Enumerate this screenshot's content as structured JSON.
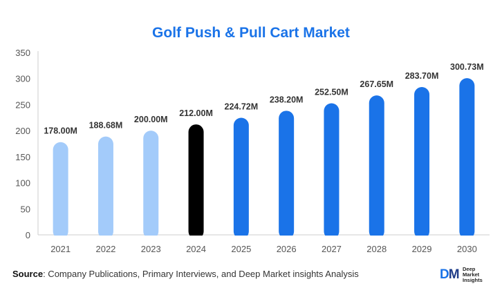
{
  "chart_data": {
    "type": "bar",
    "title": "Golf Push & Pull Cart Market",
    "categories": [
      "2021",
      "2022",
      "2023",
      "2024",
      "2025",
      "2026",
      "2027",
      "2028",
      "2029",
      "2030"
    ],
    "values": [
      178.0,
      188.68,
      200.0,
      212.0,
      224.72,
      238.2,
      252.5,
      267.65,
      283.7,
      300.73
    ],
    "data_labels": [
      "178.00M",
      "188.68M",
      "200.00M",
      "212.00M",
      "224.72M",
      "238.20M",
      "252.50M",
      "267.65M",
      "283.70M",
      "300.73M"
    ],
    "bar_colors": [
      "#a3cbfa",
      "#a3cbfa",
      "#a3cbfa",
      "#000000",
      "#1a73e8",
      "#1a73e8",
      "#1a73e8",
      "#1a73e8",
      "#1a73e8",
      "#1a73e8"
    ],
    "yticks": [
      0,
      50,
      100,
      150,
      200,
      250,
      300,
      350
    ],
    "ylim": [
      0,
      350
    ],
    "grid": false,
    "xlabel": "",
    "ylabel": ""
  },
  "source": {
    "label": "Source",
    "text": ": Company Publications, Primary Interviews, and Deep Market insights Analysis"
  },
  "logo": {
    "mark": "DM",
    "lines": [
      "Deep",
      "Market",
      "Insights"
    ]
  }
}
